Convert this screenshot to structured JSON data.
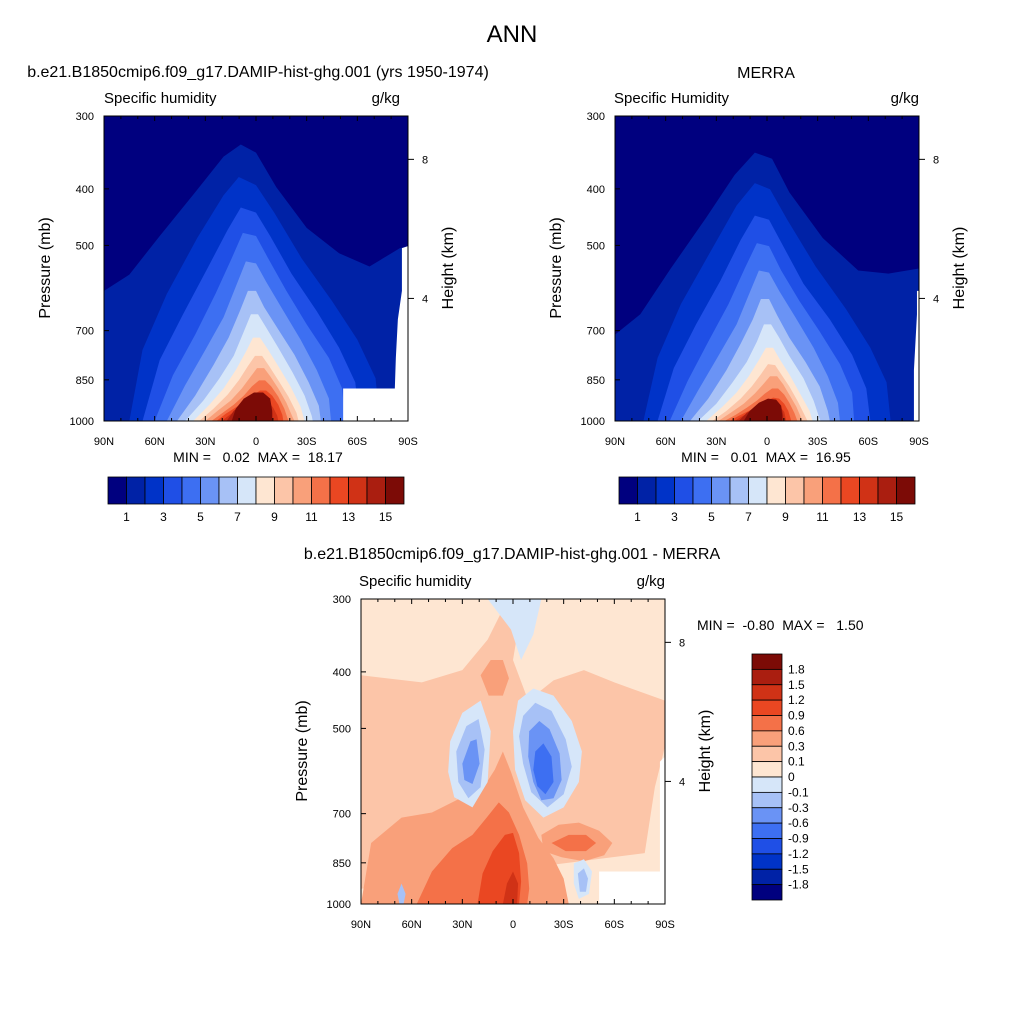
{
  "page_title": "ANN",
  "chart_data": [
    {
      "type": "heatmap",
      "title": "b.e21.B1850cmip6.f09_g17.DAMIP-hist-ghg.001 (yrs 1950-1974)",
      "left_label": "Specific humidity",
      "units": "g/kg",
      "ylabel": "Pressure (mb)",
      "ylabel_right": "Height (km)",
      "x_ticks": [
        "90N",
        "60N",
        "30N",
        "0",
        "30S",
        "60S",
        "90S"
      ],
      "xlim": [
        90,
        -90
      ],
      "y_ticks": [
        300,
        400,
        500,
        700,
        850,
        1000
      ],
      "ylim": [
        1000,
        300
      ],
      "y_scale": "log-pressure",
      "y_right_ticks": [
        8,
        4
      ],
      "min_max": "MIN =   0.02  MAX =  18.17",
      "min": 0.02,
      "max": 18.17,
      "colorbar": {
        "orientation": "horizontal",
        "labels": [
          "1",
          "3",
          "5",
          "7",
          "9",
          "11",
          "13",
          "15"
        ],
        "colors": [
          "#00007f",
          "#0022a6",
          "#0033c8",
          "#1f4fe6",
          "#3d6ff2",
          "#6a93f5",
          "#a7c1f6",
          "#d6e6f9",
          "#fee6d2",
          "#fcc5a8",
          "#f9a07a",
          "#f47148",
          "#ea4722",
          "#d03216",
          "#aa1e10",
          "#7c0b06"
        ]
      },
      "has_masked_region": true
    },
    {
      "type": "heatmap",
      "title": "MERRA",
      "left_label": "Specific Humidity",
      "units": "g/kg",
      "ylabel": "Pressure (mb)",
      "ylabel_right": "Height (km)",
      "x_ticks": [
        "90N",
        "60N",
        "30N",
        "0",
        "30S",
        "60S",
        "90S"
      ],
      "xlim": [
        90,
        -90
      ],
      "y_ticks": [
        300,
        400,
        500,
        700,
        850,
        1000
      ],
      "ylim": [
        1000,
        300
      ],
      "y_scale": "log-pressure",
      "y_right_ticks": [
        8,
        4
      ],
      "min_max": "MIN =   0.01  MAX =  16.95",
      "min": 0.01,
      "max": 16.95,
      "colorbar": {
        "orientation": "horizontal",
        "labels": [
          "1",
          "3",
          "5",
          "7",
          "9",
          "11",
          "13",
          "15"
        ],
        "colors": [
          "#00007f",
          "#0022a6",
          "#0033c8",
          "#1f4fe6",
          "#3d6ff2",
          "#6a93f5",
          "#a7c1f6",
          "#d6e6f9",
          "#fee6d2",
          "#fcc5a8",
          "#f9a07a",
          "#f47148",
          "#ea4722",
          "#d03216",
          "#aa1e10",
          "#7c0b06"
        ]
      },
      "has_masked_region": false
    },
    {
      "type": "heatmap",
      "title": "b.e21.B1850cmip6.f09_g17.DAMIP-hist-ghg.001 - MERRA",
      "left_label": "Specific humidity",
      "units": "g/kg",
      "ylabel": "Pressure (mb)",
      "ylabel_right": "Height (km)",
      "x_ticks": [
        "90N",
        "60N",
        "30N",
        "0",
        "30S",
        "60S",
        "90S"
      ],
      "xlim": [
        90,
        -90
      ],
      "y_ticks": [
        300,
        400,
        500,
        700,
        850,
        1000
      ],
      "ylim": [
        1000,
        300
      ],
      "y_scale": "log-pressure",
      "y_right_ticks": [
        8,
        4
      ],
      "min_max": "MIN =  -0.80  MAX =   1.50",
      "min": -0.8,
      "max": 1.5,
      "colorbar": {
        "orientation": "vertical",
        "labels": [
          "1.8",
          "1.5",
          "1.2",
          "0.9",
          "0.6",
          "0.3",
          "0.1",
          "0",
          "-0.1",
          "-0.3",
          "-0.6",
          "-0.9",
          "-1.2",
          "-1.5",
          "-1.8"
        ],
        "colors": [
          "#7c0b06",
          "#aa1e10",
          "#d03216",
          "#ea4722",
          "#f47148",
          "#f9a07a",
          "#fcc5a8",
          "#fee6d2",
          "#d6e6f9",
          "#a7c1f6",
          "#6a93f5",
          "#3d6ff2",
          "#1f4fe6",
          "#0033c8",
          "#0022a6",
          "#00007f"
        ]
      },
      "has_masked_region": true
    }
  ]
}
